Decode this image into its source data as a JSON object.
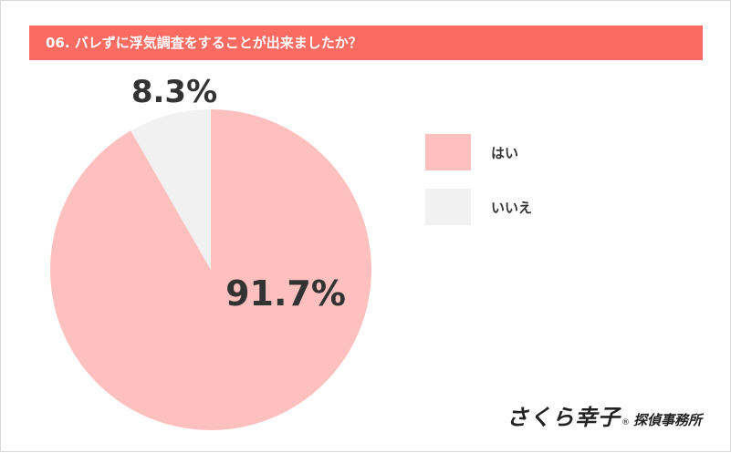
{
  "title": "06. バレずに浮気調査をすることが出来ましたか？",
  "chart_data": {
    "type": "pie",
    "slices": [
      {
        "label": "はい",
        "value": 91.7,
        "value_label": "91.7%",
        "color": "#fec0bf"
      },
      {
        "label": "いいえ",
        "value": 8.3,
        "value_label": "8.3%",
        "color": "#f1f1f1"
      }
    ],
    "legend_position": "right"
  },
  "brand": {
    "main": "さくら幸子",
    "registered": "®",
    "sub": "探偵事務所"
  }
}
